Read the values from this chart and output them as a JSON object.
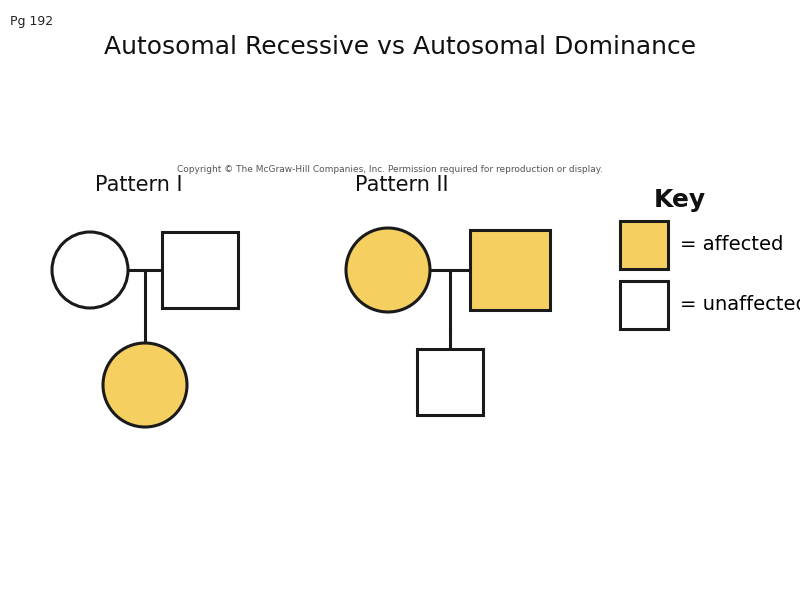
{
  "title": "Autosomal Recessive vs Autosomal Dominance",
  "page_label": "Pg 192",
  "copyright": "Copyright © The McGraw-Hill Companies, Inc. Permission required for reproduction or display.",
  "pattern1_label": "Pattern I",
  "pattern2_label": "Pattern II",
  "key_label": "Key",
  "affected_label": "= affected",
  "unaffected_label": "= unaffected",
  "affected_color": "#F5D060",
  "unaffected_color": "#FFFFFF",
  "line_color": "#1a1a1a",
  "background_color": "#FFFFFF",
  "title_fontsize": 18,
  "page_fontsize": 9,
  "pattern_fontsize": 15,
  "key_fontsize": 14,
  "copyright_fontsize": 6.5
}
